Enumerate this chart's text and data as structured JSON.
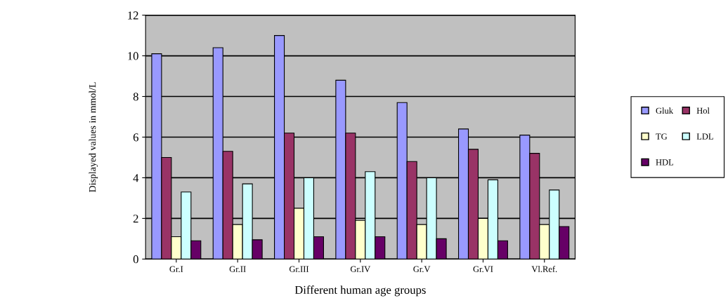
{
  "chart_data": {
    "type": "bar",
    "xlabel": "Different human age groups",
    "ylabel": "Displayed values in mmol/L",
    "categories": [
      "Gr.I",
      "Gr.II",
      "Gr.III",
      "Gr.IV",
      "Gr.V",
      "Gr.VI",
      "Vl.Ref."
    ],
    "series": [
      {
        "name": "Gluk",
        "color": "#9999ff",
        "values": [
          10.1,
          10.4,
          11.0,
          8.8,
          7.7,
          6.4,
          6.1
        ]
      },
      {
        "name": "Hol",
        "color": "#993366",
        "values": [
          5.0,
          5.3,
          6.2,
          6.2,
          4.8,
          5.4,
          5.2
        ]
      },
      {
        "name": "TG",
        "color": "#ffffcc",
        "values": [
          1.1,
          1.7,
          2.5,
          1.9,
          1.7,
          2.0,
          1.7
        ]
      },
      {
        "name": "LDL",
        "color": "#ccffff",
        "values": [
          3.3,
          3.7,
          4.0,
          4.3,
          4.0,
          3.9,
          3.4
        ]
      },
      {
        "name": "HDL",
        "color": "#660066",
        "values": [
          0.9,
          0.95,
          1.1,
          1.1,
          1.0,
          0.9,
          1.6
        ]
      }
    ],
    "ylim": [
      0,
      12
    ],
    "yticks": [
      0,
      2,
      4,
      6,
      8,
      10,
      12
    ],
    "grid": "y",
    "legend": "right"
  }
}
